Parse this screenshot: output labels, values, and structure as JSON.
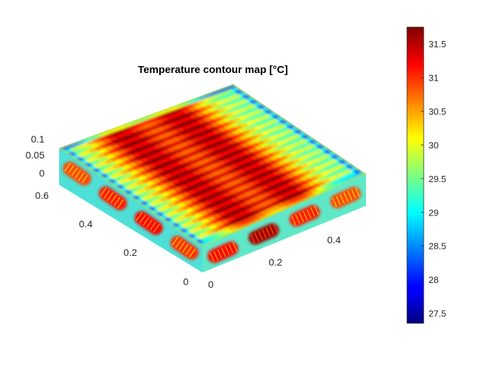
{
  "chart_data": {
    "type": "heatmap",
    "title": "Temperature contour map [°C]",
    "xlabel": "",
    "ylabel": "",
    "zlabel": "",
    "x_ticks": [
      "0",
      "0.2",
      "0.4"
    ],
    "y_ticks": [
      "0",
      "0.2",
      "0.4",
      "0.6"
    ],
    "z_ticks": [
      "0",
      "0.05",
      "0.1"
    ],
    "xlim": [
      0,
      0.56
    ],
    "ylim": [
      0,
      0.66
    ],
    "zlim": [
      0,
      0.1
    ],
    "colorbar": {
      "colormap": "jet",
      "range": [
        27.35,
        31.75
      ],
      "ticks": [
        27.5,
        28,
        28.5,
        29,
        29.5,
        30,
        30.5,
        31,
        31.5
      ],
      "tick_labels": [
        "27.5",
        "28",
        "28.5",
        "29",
        "29.5",
        "30",
        "30.5",
        "31",
        "31.5"
      ]
    },
    "surface": {
      "stripe_count": 36,
      "hot_band_centers": [
        0.3,
        0.62
      ],
      "min_temp": 27.35,
      "max_temp": 31.75,
      "left_face_cell_temps": [
        30.9,
        31.1,
        31.2,
        31.0
      ],
      "front_face_cell_temps": [
        31.2,
        31.6,
        31.1,
        30.9
      ]
    },
    "grid": false
  }
}
